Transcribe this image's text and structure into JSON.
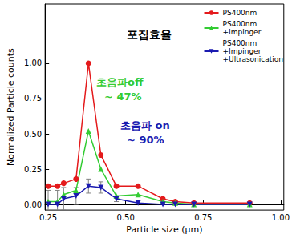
{
  "chart_data": {
    "type": "line",
    "x_label": "Particle size (μm)",
    "y_label": "Normalized Particle counts",
    "x": [
      0.25,
      0.28,
      0.3,
      0.34,
      0.38,
      0.42,
      0.47,
      0.54,
      0.62,
      0.66,
      0.72,
      0.9
    ],
    "series": [
      {
        "name": "PS400nm",
        "color": "#e41a1c",
        "marker": "circle",
        "values": [
          0.13,
          0.13,
          0.15,
          0.18,
          1.0,
          0.35,
          0.13,
          0.13,
          0.04,
          0.02,
          0.01,
          0.01
        ]
      },
      {
        "name": "PS400nm\n+Impinger",
        "color": "#33cc33",
        "marker": "triangle",
        "values": [
          0.02,
          0.02,
          0.07,
          0.1,
          0.52,
          0.25,
          0.06,
          0.07,
          0.02,
          0.01,
          0.0,
          0.0
        ]
      },
      {
        "name": "PS400nm\n+Impinger\n+Ultrasonication",
        "color": "#1a1ab0",
        "marker": "triangle-down",
        "values": [
          0.0,
          0.0,
          0.04,
          0.06,
          0.13,
          0.12,
          0.04,
          0.01,
          0.0,
          0.0,
          0.0,
          0.0
        ],
        "errors": [
          0.1,
          0.1,
          0.08,
          0.06,
          0.05,
          0.04,
          0.02,
          0.0,
          0.0,
          0.0,
          0.0,
          0.0
        ]
      }
    ],
    "xlim": [
      0.24,
      1.01
    ],
    "xticks": [
      {
        "value": 0.25,
        "label": "0.25"
      },
      {
        "value": 0.5,
        "label": "0.50"
      },
      {
        "value": 0.75,
        "label": "0.75"
      },
      {
        "value": 1.0,
        "label": "1.00"
      }
    ],
    "ylim": [
      -0.04,
      1.42
    ],
    "yticks": [
      {
        "value": 0,
        "label": "0.00"
      },
      {
        "value": 0.25,
        "label": "0.25"
      },
      {
        "value": 0.5,
        "label": "0.50"
      },
      {
        "value": 0.75,
        "label": "0.75"
      },
      {
        "value": 1.0,
        "label": "1.00"
      }
    ],
    "grid": false,
    "legend": "top-right",
    "annotations": [
      {
        "text": "포집효율",
        "color": "#000000"
      },
      {
        "text": "초음파off",
        "color": "#33cc33"
      },
      {
        "text": "~ 47%",
        "color": "#33cc33"
      },
      {
        "text": "초음파 on",
        "color": "#1a1ab0"
      },
      {
        "text": "~ 90%",
        "color": "#1a1ab0"
      }
    ]
  }
}
